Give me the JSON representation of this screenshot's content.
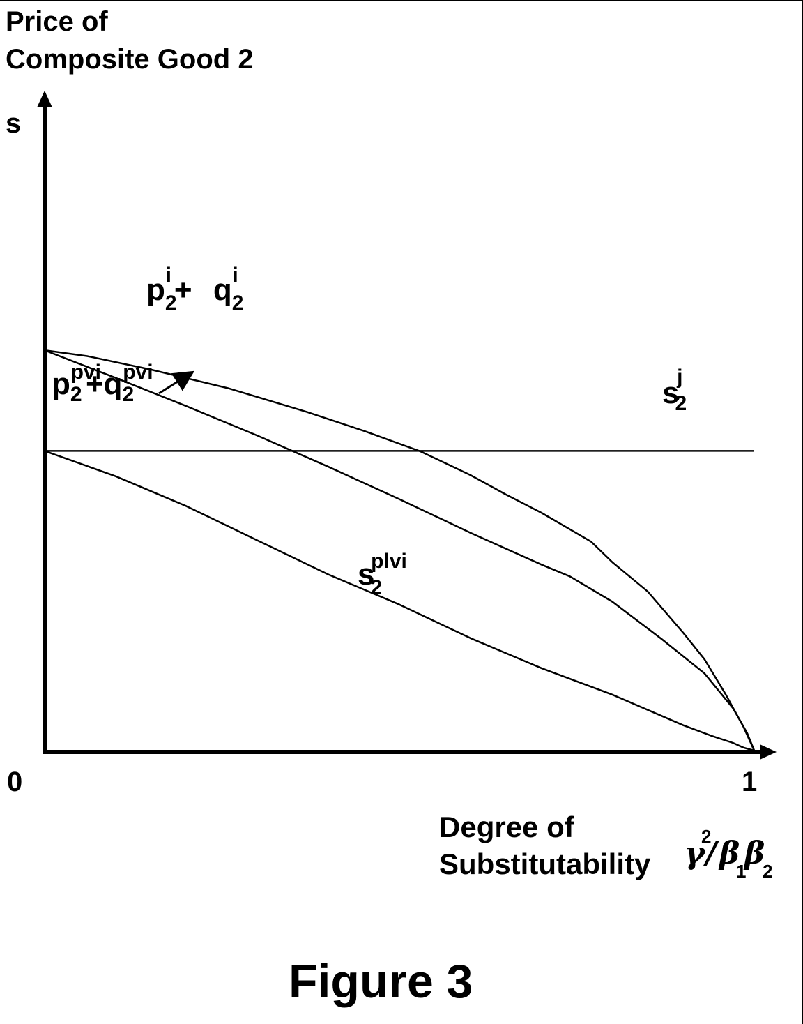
{
  "figure_caption": "Figure 3",
  "chart_data": {
    "type": "line",
    "title": "",
    "ylabel": [
      "Price of",
      "Composite Good 2"
    ],
    "y_axis_symbol": "s",
    "xlabel": [
      "Degree of",
      "Substitutability"
    ],
    "x_axis_symbol": {
      "gamma": "γ",
      "sq": "2",
      "slash": "/",
      "beta": "β",
      "sub1": "1",
      "sub2": "2"
    },
    "x_ticks": [
      "0",
      "1"
    ],
    "xlim": [
      0,
      1
    ],
    "ylim": [
      0,
      1
    ],
    "grid": false,
    "legend": "none",
    "series": [
      {
        "name": "p2i + q2i",
        "label": {
          "base1": "p",
          "sub1": "2",
          "sup1": "i",
          "op": "+ ",
          "base2": "q",
          "sub2": "2",
          "sup2": "i"
        },
        "x": [
          0,
          0.06,
          0.15,
          0.26,
          0.37,
          0.45,
          0.53,
          0.6,
          0.65,
          0.7,
          0.77,
          0.8,
          0.85,
          0.9,
          0.93,
          0.96,
          0.985,
          1.0
        ],
        "y": [
          0.68,
          0.67,
          0.647,
          0.615,
          0.575,
          0.543,
          0.508,
          0.468,
          0.435,
          0.404,
          0.355,
          0.32,
          0.27,
          0.2,
          0.155,
          0.095,
          0.04,
          0.0
        ]
      },
      {
        "name": "p2pvi + q2pvi",
        "label": {
          "base1": "p",
          "sub1": "2",
          "sup1": "pvi",
          "op": "+",
          "base2": "q",
          "sub2": "2",
          "sup2": "pvi"
        },
        "x": [
          0,
          0.1,
          0.2,
          0.3,
          0.4,
          0.5,
          0.6,
          0.7,
          0.74,
          0.8,
          0.87,
          0.93,
          0.97,
          0.99,
          1.0
        ],
        "y": [
          0.68,
          0.633,
          0.585,
          0.535,
          0.482,
          0.427,
          0.37,
          0.316,
          0.296,
          0.253,
          0.189,
          0.131,
          0.072,
          0.03,
          0.0
        ]
      },
      {
        "name": "s2j",
        "label": {
          "base1": "s",
          "sub1": "2",
          "sup1": "j"
        },
        "x": [
          0,
          1.0
        ],
        "y": [
          0.509,
          0.509
        ]
      },
      {
        "name": "s2plvi",
        "label": {
          "base1": "s",
          "sub1": "2",
          "sup1": "plvi"
        },
        "x": [
          0,
          0.1,
          0.2,
          0.3,
          0.4,
          0.5,
          0.6,
          0.7,
          0.8,
          0.9,
          0.94,
          0.97,
          0.985,
          1.0
        ],
        "y": [
          0.509,
          0.466,
          0.415,
          0.357,
          0.299,
          0.248,
          0.191,
          0.14,
          0.095,
          0.043,
          0.025,
          0.013,
          0.005,
          0.0
        ]
      }
    ]
  }
}
